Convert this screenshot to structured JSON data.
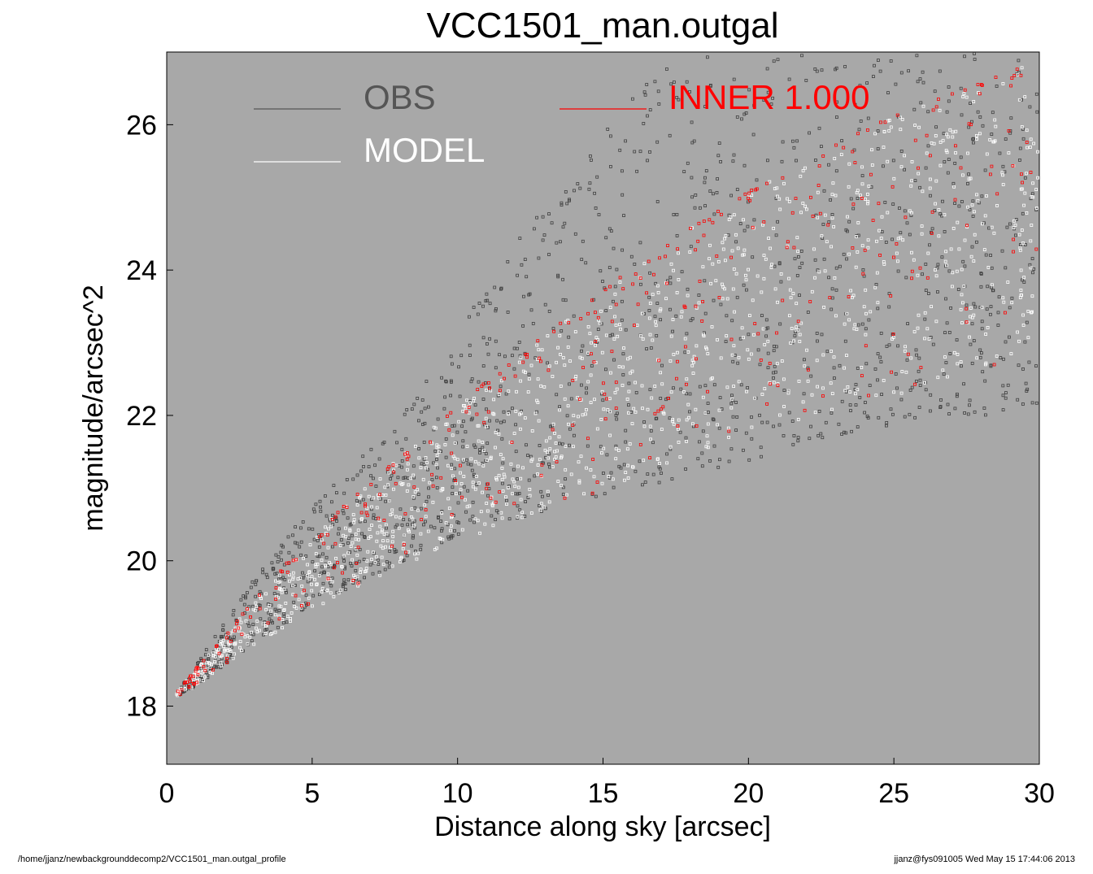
{
  "chart_data": {
    "type": "scatter",
    "title": "VCC1501_man.outgal",
    "xlabel": "Distance along sky [arcsec]",
    "ylabel": "magnitude/arcsec^2",
    "xlim": [
      0,
      30
    ],
    "ylim": [
      27.0,
      17.2
    ],
    "y_inverted": true,
    "x_ticks": [
      "0",
      "5",
      "10",
      "15",
      "20",
      "25",
      "30"
    ],
    "y_ticks": [
      "18",
      "20",
      "22",
      "24",
      "26"
    ],
    "background": "#a8a8a8",
    "grid": false,
    "legend": [
      {
        "label": "OBS",
        "color": "#555555",
        "placement": "top-left"
      },
      {
        "label": "MODEL",
        "color": "#ffffff",
        "placement": "top-left"
      },
      {
        "label": "INNER  1.000",
        "color": "#ff0000",
        "placement": "top-center"
      }
    ],
    "series": [
      {
        "name": "OBS",
        "color": "#404040",
        "marker": "open-square",
        "x": [
          0.3,
          1.0,
          2.0,
          3.0,
          4.0,
          5.0,
          6.0,
          7.0,
          8.0,
          9.0,
          10.0,
          11.0,
          12.0,
          13.0,
          14.0,
          15.0,
          16.0,
          17.0,
          18.0,
          19.0,
          20.0,
          21.0,
          22.0,
          23.0,
          24.0,
          25.0,
          26.0,
          27.0,
          28.0,
          29.0,
          30.0
        ],
        "upper_y": [
          18.15,
          18.3,
          18.6,
          18.9,
          19.15,
          19.4,
          19.6,
          19.8,
          20.0,
          20.2,
          20.35,
          20.5,
          20.6,
          20.7,
          20.8,
          20.9,
          21.0,
          21.1,
          21.2,
          21.3,
          21.4,
          21.5,
          21.6,
          21.7,
          21.8,
          21.9,
          21.95,
          22.0,
          22.0,
          22.05,
          22.1
        ],
        "lower_y": [
          18.2,
          18.6,
          19.2,
          19.8,
          20.3,
          20.8,
          21.2,
          21.6,
          22.0,
          22.6,
          23.2,
          23.8,
          24.4,
          25.0,
          25.5,
          26.0,
          26.4,
          26.8,
          27.0,
          27.0,
          27.0,
          27.0,
          27.0,
          27.0,
          27.0,
          27.0,
          27.0,
          27.0,
          27.0,
          27.0,
          27.0
        ]
      },
      {
        "name": "MODEL",
        "color": "#ffffff",
        "marker": "open-square",
        "x": [
          0.3,
          1.0,
          2.0,
          3.0,
          4.0,
          5.0,
          6.0,
          7.0,
          8.0,
          9.0,
          10.0,
          11.0,
          12.0,
          13.0,
          14.0,
          15.0,
          16.0,
          17.0,
          18.0,
          19.0,
          20.0,
          21.0,
          22.0,
          23.0,
          24.0,
          25.0,
          26.0,
          27.0,
          28.0,
          29.0,
          30.0
        ],
        "upper_y": [
          18.15,
          18.3,
          18.6,
          18.85,
          19.1,
          19.35,
          19.55,
          19.75,
          19.95,
          20.1,
          20.25,
          20.4,
          20.55,
          20.7,
          20.85,
          21.0,
          21.15,
          21.3,
          21.45,
          21.6,
          21.75,
          21.85,
          22.0,
          22.1,
          22.2,
          22.3,
          22.4,
          22.5,
          22.6,
          22.75,
          22.9
        ],
        "lower_y": [
          18.2,
          18.55,
          19.0,
          19.5,
          19.95,
          20.35,
          20.75,
          21.1,
          21.45,
          21.8,
          22.15,
          22.5,
          22.8,
          23.15,
          23.45,
          23.75,
          24.05,
          24.3,
          24.6,
          24.85,
          25.1,
          25.35,
          25.55,
          25.75,
          25.95,
          26.15,
          26.3,
          26.45,
          26.6,
          26.75,
          26.9
        ]
      },
      {
        "name": "INNER  1.000",
        "color": "#ff0000",
        "marker": "open-square",
        "x": [
          0.3,
          1.0,
          2.0,
          3.0,
          4.0,
          5.0,
          6.0,
          7.0,
          8.0,
          9.0,
          10.0,
          11.0,
          12.0,
          13.0,
          14.0,
          15.0,
          16.0,
          17.0,
          18.0,
          19.0,
          20.0,
          21.0,
          22.0,
          23.0,
          24.0,
          25.0,
          26.0,
          27.0,
          28.0,
          29.0,
          30.0
        ],
        "upper_y": [
          18.15,
          18.3,
          18.6,
          18.85,
          19.1,
          19.35,
          19.55,
          19.75,
          19.95,
          20.1,
          20.25,
          20.4,
          20.55,
          20.7,
          20.85,
          21.0,
          21.15,
          21.3,
          21.45,
          21.6,
          21.75,
          21.85,
          22.0,
          22.1,
          22.2,
          22.3,
          22.4,
          22.5,
          22.6,
          22.75,
          22.9
        ],
        "lower_y": [
          18.2,
          18.55,
          19.0,
          19.5,
          19.95,
          20.35,
          20.75,
          21.1,
          21.45,
          21.8,
          22.15,
          22.5,
          22.8,
          23.15,
          23.45,
          23.75,
          24.05,
          24.3,
          24.6,
          24.85,
          25.1,
          25.35,
          25.55,
          25.75,
          25.95,
          26.15,
          26.3,
          26.45,
          26.6,
          26.75,
          26.9
        ]
      }
    ]
  },
  "footer": {
    "path": "/home/jjanz/newbackgrounddecomp2/VCC1501_man.outgal_profile",
    "stamp": "jjanz@fys091005  Wed May 15 17:44:06 2013"
  }
}
